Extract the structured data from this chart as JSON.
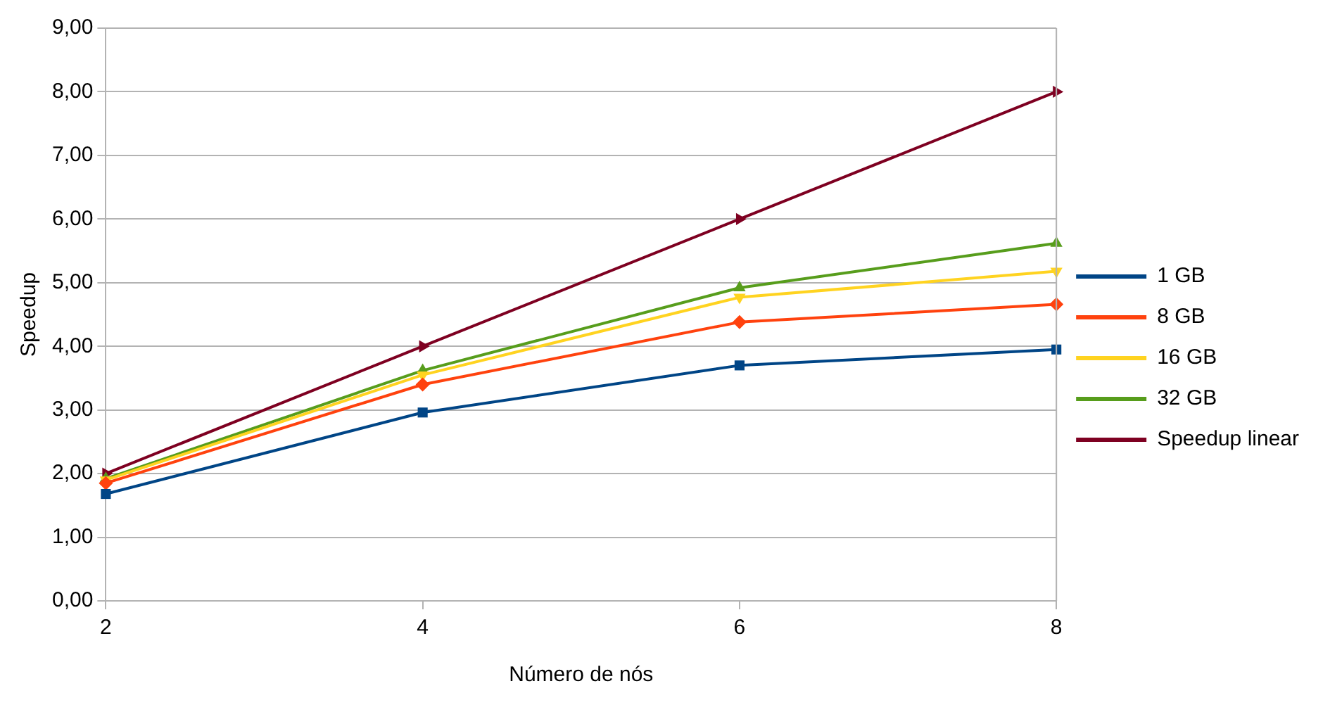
{
  "chart_data": {
    "type": "line",
    "xlabel": "Número de nós",
    "ylabel": "Speedup",
    "x": [
      2,
      4,
      6,
      8
    ],
    "xlim": [
      2,
      8
    ],
    "xticks": [
      2,
      4,
      6,
      8
    ],
    "ylim": [
      0,
      9
    ],
    "yticks": [
      {
        "value": 0,
        "label": "0,00"
      },
      {
        "value": 1,
        "label": "1,00"
      },
      {
        "value": 2,
        "label": "2,00"
      },
      {
        "value": 3,
        "label": "3,00"
      },
      {
        "value": 4,
        "label": "4,00"
      },
      {
        "value": 5,
        "label": "5,00"
      },
      {
        "value": 6,
        "label": "6,00"
      },
      {
        "value": 7,
        "label": "7,00"
      },
      {
        "value": 8,
        "label": "8,00"
      },
      {
        "value": 9,
        "label": "9,00"
      }
    ],
    "grid": "y",
    "legend": "right",
    "series": [
      {
        "name": "1 GB",
        "color": "#004586",
        "marker": "square",
        "values": [
          1.68,
          2.96,
          3.7,
          3.95
        ]
      },
      {
        "name": "8 GB",
        "color": "#ff420e",
        "marker": "diamond",
        "values": [
          1.85,
          3.4,
          4.38,
          4.66
        ]
      },
      {
        "name": "16 GB",
        "color": "#ffd320",
        "marker": "triangle-down",
        "values": [
          1.9,
          3.55,
          4.77,
          5.18
        ]
      },
      {
        "name": "32 GB",
        "color": "#579d1c",
        "marker": "triangle",
        "values": [
          1.92,
          3.62,
          4.92,
          5.62
        ]
      },
      {
        "name": "Speedup linear",
        "color": "#7e0021",
        "marker": "triangle-right",
        "values": [
          2,
          4,
          6,
          8
        ]
      }
    ]
  }
}
